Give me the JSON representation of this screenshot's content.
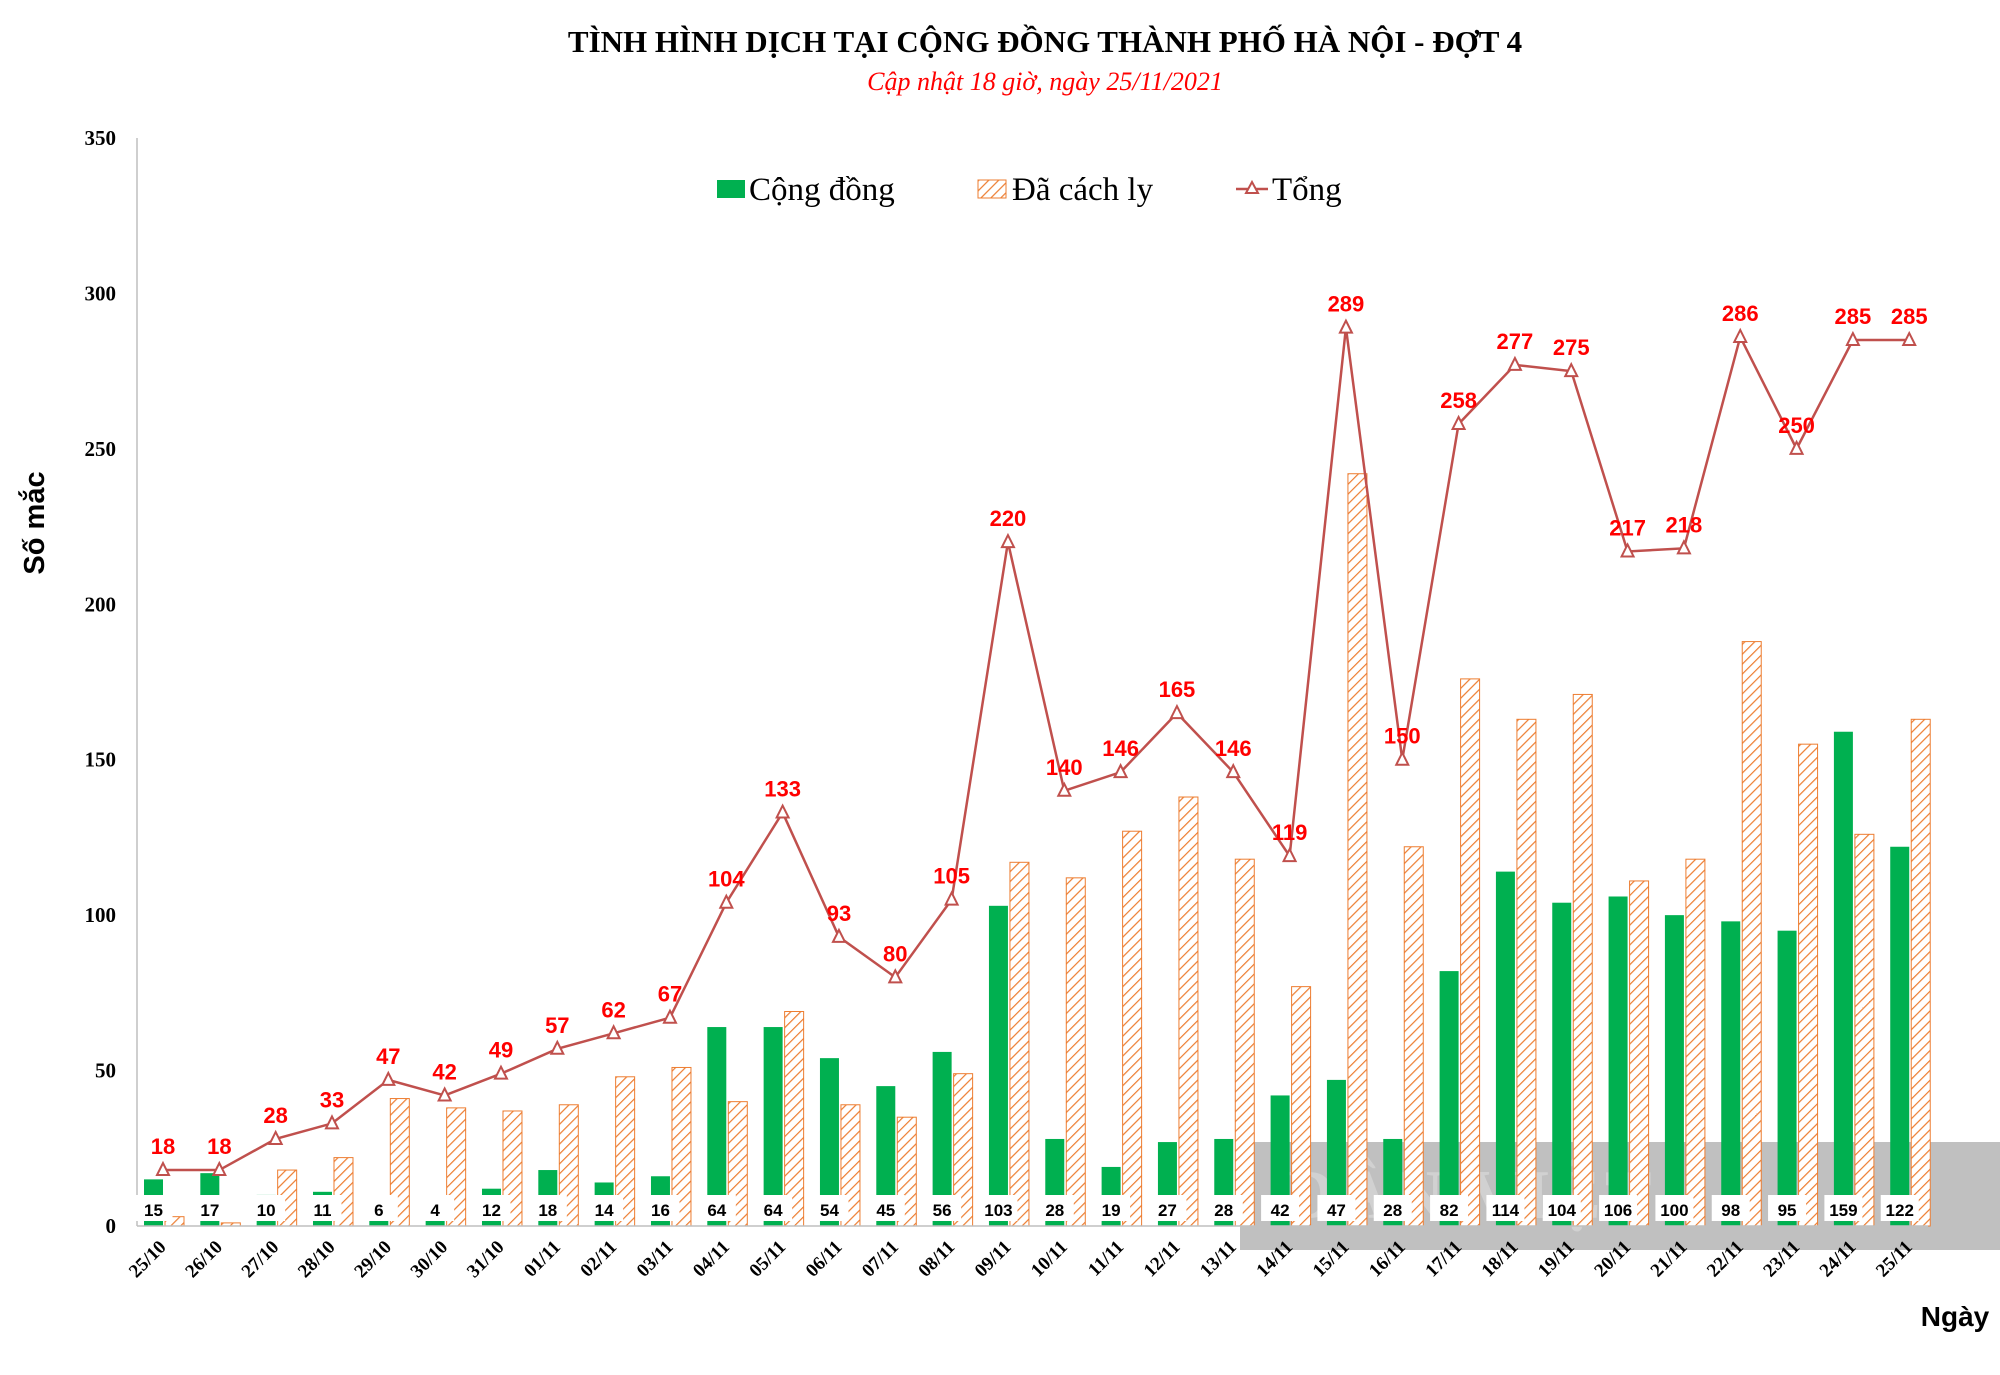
{
  "chart_data": {
    "type": "bar",
    "title": "TÌNH HÌNH DỊCH TẠI CỘNG ĐỒNG THÀNH PHỐ HÀ NỘI - ĐỢT 4",
    "subtitle": "Cập nhật 18 giờ, ngày 25/11/2021",
    "xlabel": "Ngày",
    "ylabel": "Số mắc",
    "ylim": [
      0,
      350
    ],
    "yticks": [
      0,
      50,
      100,
      150,
      200,
      250,
      300,
      350
    ],
    "grid": false,
    "legend_position": "top-center",
    "categories": [
      "25/10",
      "26/10",
      "27/10",
      "28/10",
      "29/10",
      "30/10",
      "31/10",
      "01/11",
      "02/11",
      "03/11",
      "04/11",
      "05/11",
      "06/11",
      "07/11",
      "08/11",
      "09/11",
      "10/11",
      "11/11",
      "12/11",
      "13/11",
      "14/11",
      "15/11",
      "16/11",
      "17/11",
      "18/11",
      "19/11",
      "20/11",
      "21/11",
      "22/11",
      "23/11",
      "24/11",
      "25/11"
    ],
    "series": [
      {
        "name": "Cộng đồng",
        "type": "bar",
        "color": "#00b050",
        "values": [
          15,
          17,
          10,
          11,
          6,
          4,
          12,
          18,
          14,
          16,
          64,
          64,
          54,
          45,
          56,
          103,
          28,
          19,
          27,
          28,
          42,
          47,
          28,
          82,
          114,
          104,
          106,
          100,
          98,
          95,
          159,
          122
        ]
      },
      {
        "name": "Đã cách ly",
        "type": "bar",
        "color": "#f4a460",
        "values": [
          3,
          1,
          18,
          22,
          41,
          38,
          37,
          39,
          48,
          51,
          40,
          69,
          39,
          35,
          49,
          117,
          112,
          127,
          138,
          118,
          77,
          242,
          122,
          176,
          163,
          171,
          111,
          118,
          188,
          155,
          126,
          163
        ]
      },
      {
        "name": "Tổng",
        "type": "line",
        "color": "#c0504d",
        "values": [
          18,
          18,
          28,
          33,
          47,
          42,
          49,
          57,
          62,
          67,
          104,
          133,
          93,
          80,
          105,
          220,
          140,
          146,
          165,
          146,
          119,
          289,
          150,
          258,
          277,
          275,
          217,
          218,
          286,
          250,
          285,
          285
        ]
      }
    ]
  },
  "watermark": "DÂN VIỆT",
  "colors": {
    "title": "#000000",
    "subtitle": "#ff0000",
    "total_label": "#ff0000",
    "axis": "#bfbfbf"
  }
}
